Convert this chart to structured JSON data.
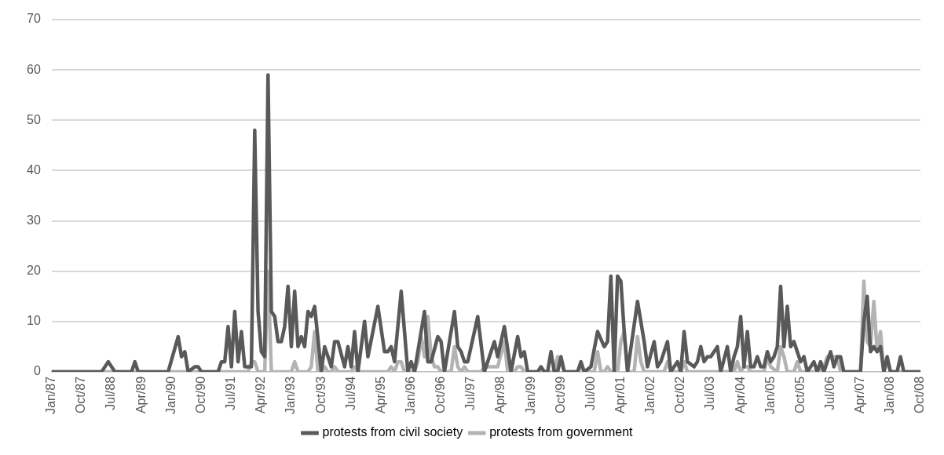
{
  "chart_data": {
    "type": "line",
    "series": [
      {
        "name": "protests from civil society",
        "color": "#595959",
        "x": [
          "1987-01",
          "1988-04",
          "1988-06",
          "1988-08",
          "1989-01",
          "1989-02",
          "1989-03",
          "1989-12",
          "1990-03",
          "1990-04",
          "1990-05",
          "1990-06",
          "1990-08",
          "1990-09",
          "1990-10",
          "1991-03",
          "1991-04",
          "1991-05",
          "1991-06",
          "1991-07",
          "1991-08",
          "1991-09",
          "1991-10",
          "1991-11",
          "1991-12",
          "1992-01",
          "1992-02",
          "1992-03",
          "1992-04",
          "1992-05",
          "1992-06",
          "1992-07",
          "1992-08",
          "1992-09",
          "1992-10",
          "1992-11",
          "1992-12",
          "1993-01",
          "1993-02",
          "1993-03",
          "1993-04",
          "1993-05",
          "1993-06",
          "1993-07",
          "1993-08",
          "1993-10",
          "1993-11",
          "1994-01",
          "1994-02",
          "1994-03",
          "1994-05",
          "1994-06",
          "1994-07",
          "1994-08",
          "1994-09",
          "1994-11",
          "1994-12",
          "1995-03",
          "1995-05",
          "1995-06",
          "1995-07",
          "1995-08",
          "1995-10",
          "1995-12",
          "1996-01",
          "1996-02",
          "1996-05",
          "1996-06",
          "1996-07",
          "1996-09",
          "1996-10",
          "1996-11",
          "1997-02",
          "1997-03",
          "1997-04",
          "1997-05",
          "1997-06",
          "1997-09",
          "1997-11",
          "1998-02",
          "1998-03",
          "1998-05",
          "1998-07",
          "1998-09",
          "1998-10",
          "1998-11",
          "1998-12",
          "1999-03",
          "1999-04",
          "1999-05",
          "1999-06",
          "1999-07",
          "1999-08",
          "1999-09",
          "1999-10",
          "1999-11",
          "2000-03",
          "2000-04",
          "2000-05",
          "2000-07",
          "2000-09",
          "2000-11",
          "2000-12",
          "2001-01",
          "2001-02",
          "2001-03",
          "2001-04",
          "2001-05",
          "2001-06",
          "2001-09",
          "2001-10",
          "2001-11",
          "2001-12",
          "2002-02",
          "2002-03",
          "2002-04",
          "2002-06",
          "2002-07",
          "2002-09",
          "2002-10",
          "2002-11",
          "2002-12",
          "2003-02",
          "2003-03",
          "2003-04",
          "2003-05",
          "2003-06",
          "2003-07",
          "2003-09",
          "2003-10",
          "2003-12",
          "2004-01",
          "2004-02",
          "2004-03",
          "2004-04",
          "2004-05",
          "2004-06",
          "2004-07",
          "2004-08",
          "2004-09",
          "2004-10",
          "2004-11",
          "2004-12",
          "2005-01",
          "2005-02",
          "2005-03",
          "2005-04",
          "2005-05",
          "2005-06",
          "2005-07",
          "2005-08",
          "2005-09",
          "2005-10",
          "2005-11",
          "2005-12",
          "2006-02",
          "2006-03",
          "2006-04",
          "2006-05",
          "2006-06",
          "2006-07",
          "2006-08",
          "2006-09",
          "2006-10",
          "2006-11",
          "2007-04",
          "2007-05",
          "2007-06",
          "2007-07",
          "2007-08",
          "2007-09",
          "2007-10",
          "2007-11",
          "2007-12",
          "2008-01",
          "2008-03",
          "2008-04",
          "2008-05",
          "2008-10"
        ],
        "values": [
          0,
          0,
          2,
          0,
          0,
          2,
          0,
          0,
          7,
          3,
          4,
          0,
          1,
          1,
          0,
          0,
          2,
          2,
          9,
          1,
          12,
          2,
          8,
          1,
          1,
          1,
          48,
          12,
          4,
          3,
          59,
          12,
          11,
          6,
          6,
          9,
          17,
          5,
          16,
          5,
          7,
          5,
          12,
          11,
          13,
          0,
          5,
          1,
          6,
          6,
          1,
          5,
          1,
          8,
          0,
          10,
          3,
          13,
          4,
          4,
          5,
          2,
          16,
          0,
          2,
          0,
          12,
          2,
          2,
          7,
          6,
          0,
          12,
          5,
          4,
          2,
          2,
          11,
          0,
          6,
          3,
          9,
          0,
          7,
          3,
          4,
          0,
          0,
          1,
          0,
          0,
          4,
          0,
          0,
          3,
          0,
          0,
          2,
          0,
          1,
          8,
          5,
          6,
          19,
          0,
          19,
          18,
          8,
          0,
          14,
          10,
          6,
          1,
          6,
          1,
          2,
          6,
          0,
          2,
          0,
          8,
          2,
          1,
          2,
          5,
          2,
          3,
          3,
          5,
          0,
          5,
          0,
          3,
          5,
          11,
          1,
          8,
          1,
          1,
          3,
          1,
          1,
          4,
          2,
          3,
          5,
          17,
          5,
          13,
          5,
          6,
          4,
          2,
          3,
          0,
          2,
          0,
          2,
          0,
          2,
          4,
          1,
          3,
          3,
          0,
          0,
          10,
          15,
          4,
          5,
          4,
          5,
          0,
          3,
          0,
          0,
          3,
          0,
          0
        ]
      },
      {
        "name": "protests from government",
        "color": "#b3b3b3",
        "x": [
          "1987-01",
          "1991-12",
          "1992-01",
          "1992-02",
          "1992-03",
          "1992-05",
          "1992-06",
          "1992-07",
          "1993-01",
          "1993-02",
          "1993-03",
          "1993-06",
          "1993-07",
          "1993-08",
          "1993-09",
          "1993-10",
          "1993-11",
          "1993-12",
          "1994-01",
          "1994-02",
          "1994-03",
          "1994-07",
          "1994-08",
          "1994-09",
          "1995-06",
          "1995-07",
          "1995-08",
          "1995-09",
          "1995-10",
          "1995-11",
          "1996-02",
          "1996-03",
          "1996-04",
          "1996-05",
          "1996-06",
          "1996-07",
          "1996-08",
          "1996-09",
          "1996-10",
          "1997-01",
          "1997-02",
          "1997-03",
          "1997-04",
          "1997-05",
          "1997-06",
          "1997-10",
          "1997-11",
          "1998-03",
          "1998-05",
          "1998-06",
          "1998-08",
          "1998-09",
          "1998-10",
          "1998-11",
          "1999-08",
          "1999-09",
          "1999-10",
          "1999-11",
          "2000-03",
          "2000-04",
          "2000-05",
          "2000-08",
          "2000-09",
          "2000-10",
          "2000-11",
          "2000-12",
          "2001-01",
          "2001-03",
          "2001-04",
          "2001-05",
          "2001-06",
          "2001-08",
          "2001-09",
          "2001-10",
          "2001-11",
          "2002-05",
          "2002-06",
          "2002-07",
          "2002-10",
          "2002-11",
          "2002-12",
          "2004-02",
          "2004-03",
          "2004-04",
          "2004-05",
          "2004-06",
          "2004-07",
          "2004-11",
          "2004-12",
          "2005-01",
          "2005-03",
          "2005-04",
          "2005-05",
          "2005-06",
          "2005-08",
          "2005-09",
          "2005-10",
          "2006-03",
          "2006-05",
          "2006-06",
          "2006-09",
          "2006-10",
          "2007-04",
          "2007-05",
          "2007-06",
          "2007-07",
          "2007-08",
          "2007-09",
          "2007-10",
          "2007-11",
          "2007-12",
          "2008-01",
          "2008-10"
        ],
        "values": [
          0,
          0,
          2,
          2,
          0,
          0,
          20,
          0,
          0,
          2,
          0,
          0,
          1,
          8,
          0,
          0,
          1,
          0,
          0,
          1,
          0,
          0,
          1,
          0,
          0,
          1,
          0,
          2,
          2,
          0,
          0,
          2,
          7,
          3,
          11,
          3,
          1,
          1,
          0,
          0,
          5,
          1,
          0,
          1,
          0,
          0,
          1,
          1,
          6,
          0,
          0,
          1,
          1,
          0,
          0,
          3,
          2,
          0,
          0,
          1,
          0,
          0,
          4,
          0,
          0,
          1,
          0,
          0,
          6,
          8,
          0,
          0,
          7,
          2,
          0,
          0,
          2,
          0,
          0,
          2,
          0,
          0,
          2,
          0,
          1,
          1,
          0,
          0,
          3,
          1,
          0,
          5,
          3,
          0,
          0,
          2,
          0,
          0,
          1,
          3,
          3,
          0,
          0,
          18,
          6,
          5,
          14,
          4,
          8,
          0,
          2,
          0,
          0
        ]
      }
    ],
    "xlim": [
      "1987-01",
      "2008-10"
    ],
    "xticks": [
      {
        "value": "1987-01",
        "label": "Jan/87"
      },
      {
        "value": "1987-10",
        "label": "Oct/87"
      },
      {
        "value": "1988-07",
        "label": "Jul/88"
      },
      {
        "value": "1989-04",
        "label": "Apr/89"
      },
      {
        "value": "1990-01",
        "label": "Jan/90"
      },
      {
        "value": "1990-10",
        "label": "Oct/90"
      },
      {
        "value": "1991-07",
        "label": "Jul/91"
      },
      {
        "value": "1992-04",
        "label": "Apr/92"
      },
      {
        "value": "1993-01",
        "label": "Jan/93"
      },
      {
        "value": "1993-10",
        "label": "Oct/93"
      },
      {
        "value": "1994-07",
        "label": "Jul/94"
      },
      {
        "value": "1995-04",
        "label": "Apr/95"
      },
      {
        "value": "1996-01",
        "label": "Jan/96"
      },
      {
        "value": "1996-10",
        "label": "Oct/96"
      },
      {
        "value": "1997-07",
        "label": "Jul/97"
      },
      {
        "value": "1998-04",
        "label": "Apr/98"
      },
      {
        "value": "1999-01",
        "label": "Jan/99"
      },
      {
        "value": "1999-10",
        "label": "Oct/99"
      },
      {
        "value": "2000-07",
        "label": "Jul/00"
      },
      {
        "value": "2001-04",
        "label": "Apr/01"
      },
      {
        "value": "2002-01",
        "label": "Jan/02"
      },
      {
        "value": "2002-10",
        "label": "Oct/02"
      },
      {
        "value": "2003-07",
        "label": "Jul/03"
      },
      {
        "value": "2004-04",
        "label": "Apr/04"
      },
      {
        "value": "2005-01",
        "label": "Jan/05"
      },
      {
        "value": "2005-10",
        "label": "Oct/05"
      },
      {
        "value": "2006-07",
        "label": "Jul/06"
      },
      {
        "value": "2007-04",
        "label": "Apr/07"
      },
      {
        "value": "2008-01",
        "label": "Jan/08"
      },
      {
        "value": "2008-10",
        "label": "Oct/08"
      }
    ],
    "ylim": [
      0,
      70
    ],
    "yticks": [
      0,
      10,
      20,
      30,
      40,
      50,
      60,
      70
    ],
    "grid": "y",
    "legend": "bottom",
    "marker": "none",
    "line_style": "solid"
  }
}
